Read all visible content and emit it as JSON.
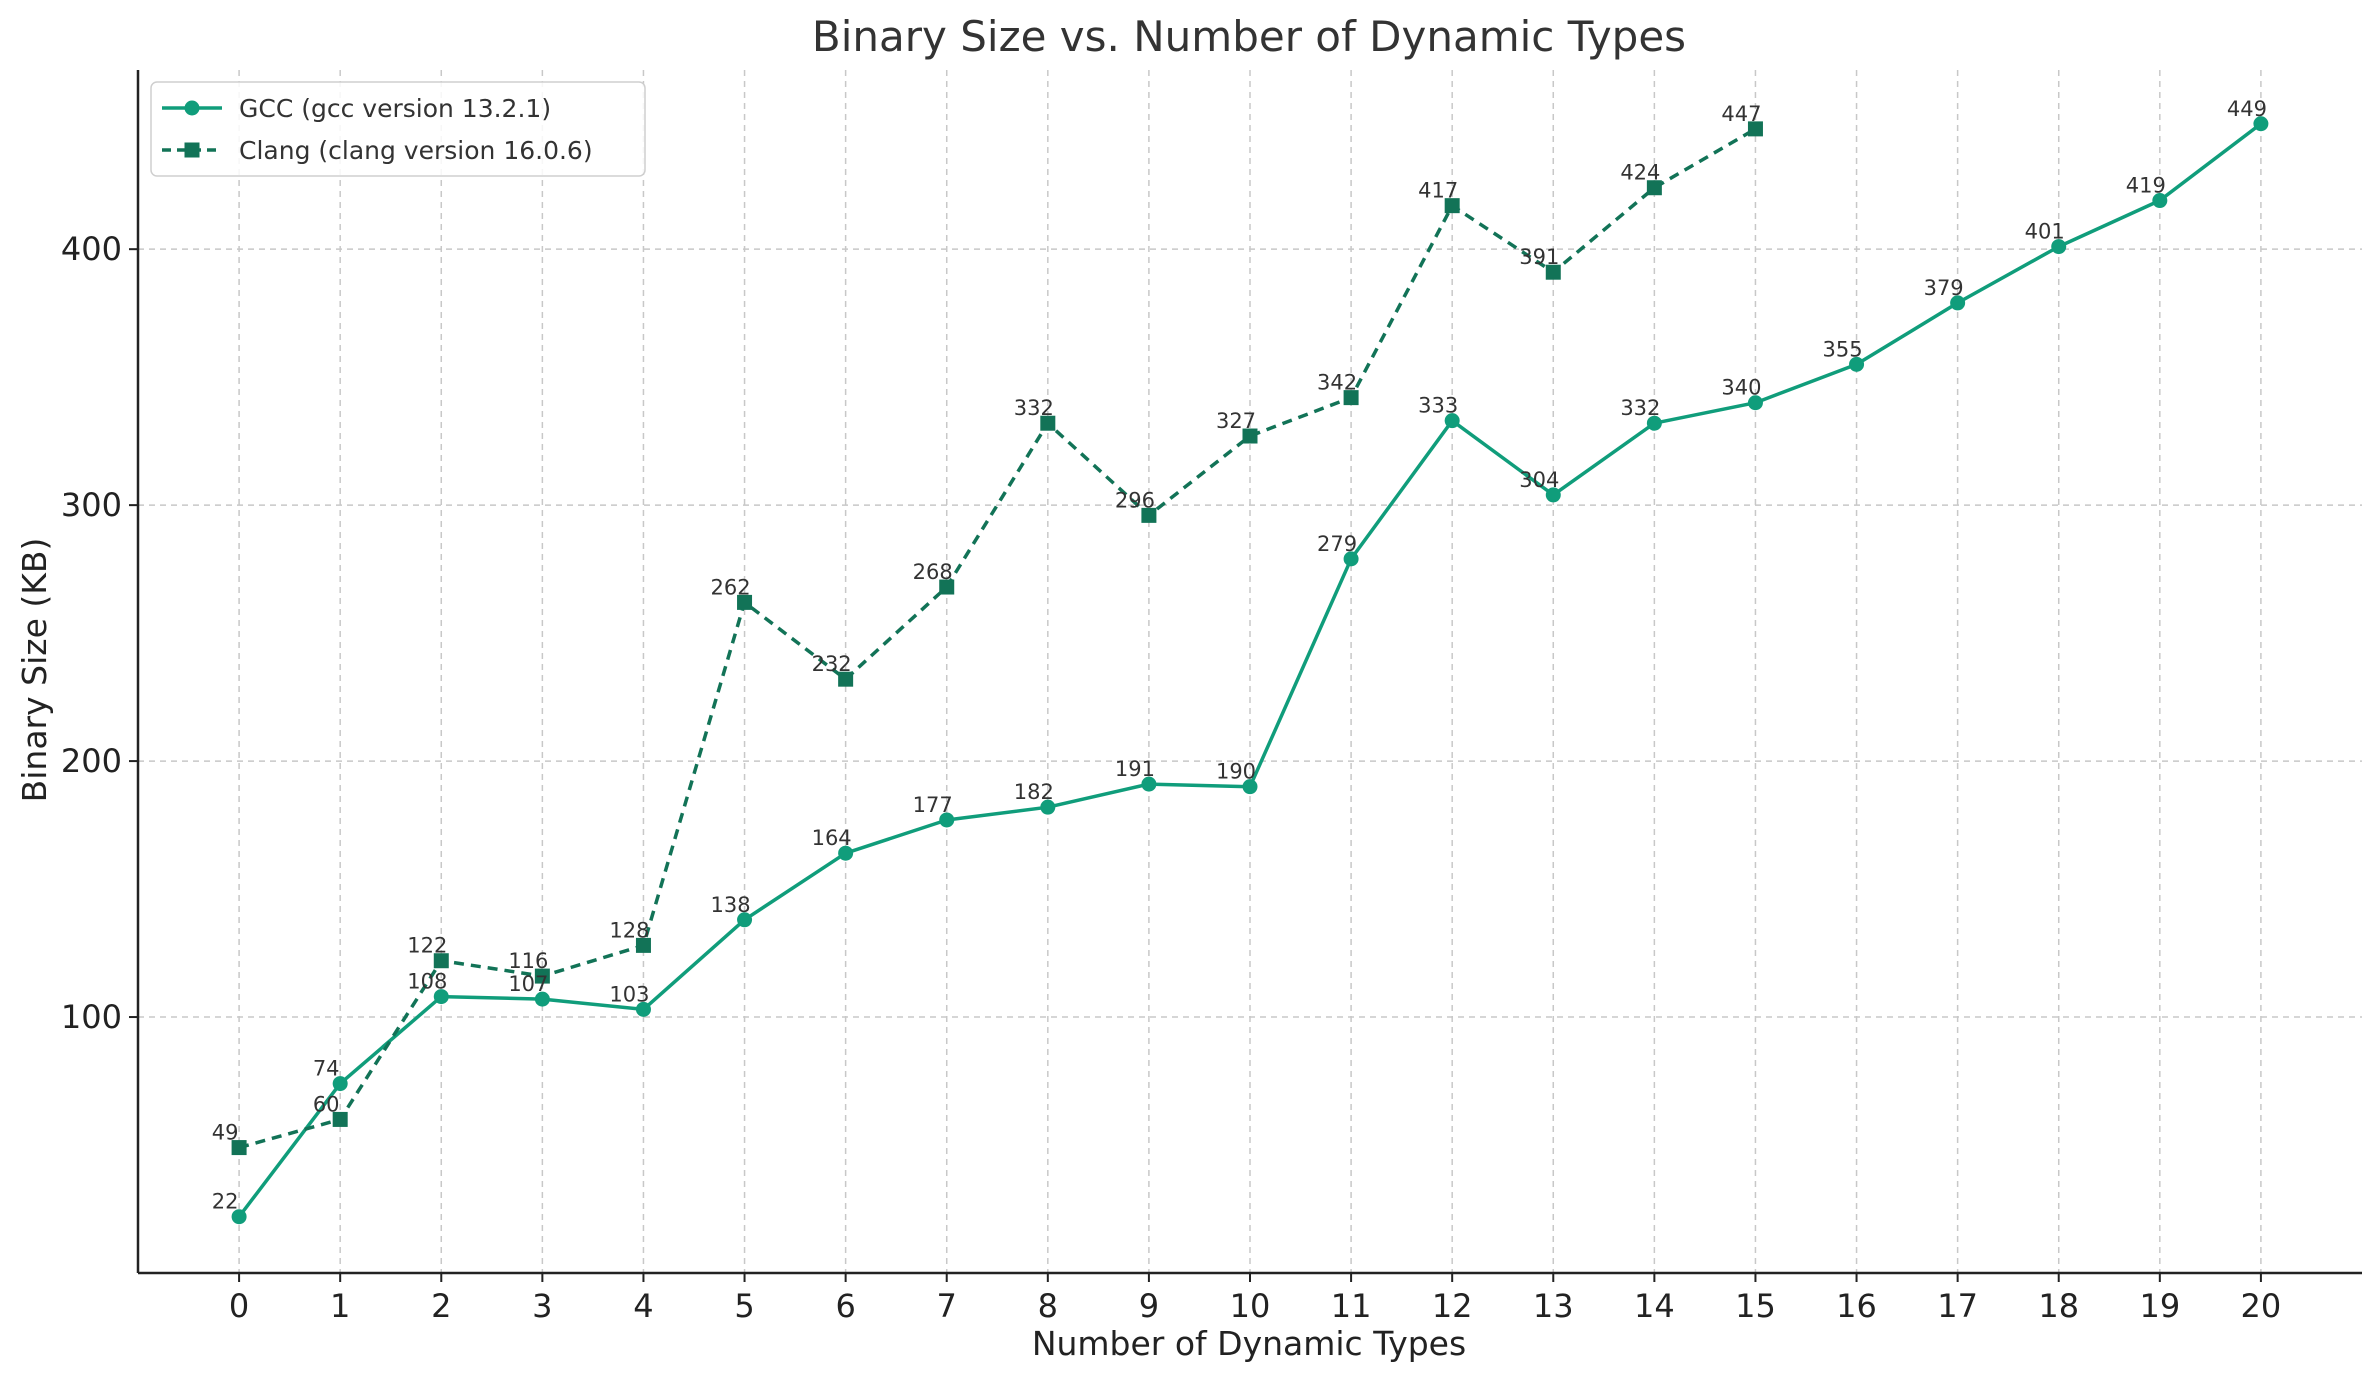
{
  "chart_data": {
    "type": "line",
    "title": "Binary Size vs. Number of Dynamic Types",
    "xlabel": "Number of Dynamic Types",
    "ylabel": "Binary Size (KB)",
    "x": [
      0,
      1,
      2,
      3,
      4,
      5,
      6,
      7,
      8,
      9,
      10,
      11,
      12,
      13,
      14,
      15,
      16,
      17,
      18,
      19,
      20
    ],
    "xlim": [
      -1,
      21
    ],
    "ylim": [
      0,
      470
    ],
    "yticks": [
      100,
      200,
      300,
      400
    ],
    "grid": true,
    "legend_position": "top-left",
    "series": [
      {
        "name": "GCC (gcc version 13.2.1)",
        "style": "solid",
        "marker": "circle",
        "color": "#109d7b",
        "x": [
          0,
          1,
          2,
          3,
          4,
          5,
          6,
          7,
          8,
          9,
          10,
          11,
          12,
          13,
          14,
          15,
          16,
          17,
          18,
          19,
          20
        ],
        "values": [
          22,
          74,
          108,
          107,
          103,
          138,
          164,
          177,
          182,
          191,
          190,
          279,
          333,
          304,
          332,
          340,
          355,
          379,
          401,
          419,
          449
        ]
      },
      {
        "name": "Clang (clang version 16.0.6)",
        "style": "dashed",
        "marker": "square",
        "color": "#127357",
        "x": [
          0,
          1,
          2,
          3,
          4,
          5,
          6,
          7,
          8,
          9,
          10,
          11,
          12,
          13,
          14,
          15
        ],
        "values": [
          49,
          60,
          122,
          116,
          128,
          262,
          232,
          268,
          332,
          296,
          327,
          342,
          417,
          391,
          424,
          447
        ]
      }
    ]
  }
}
